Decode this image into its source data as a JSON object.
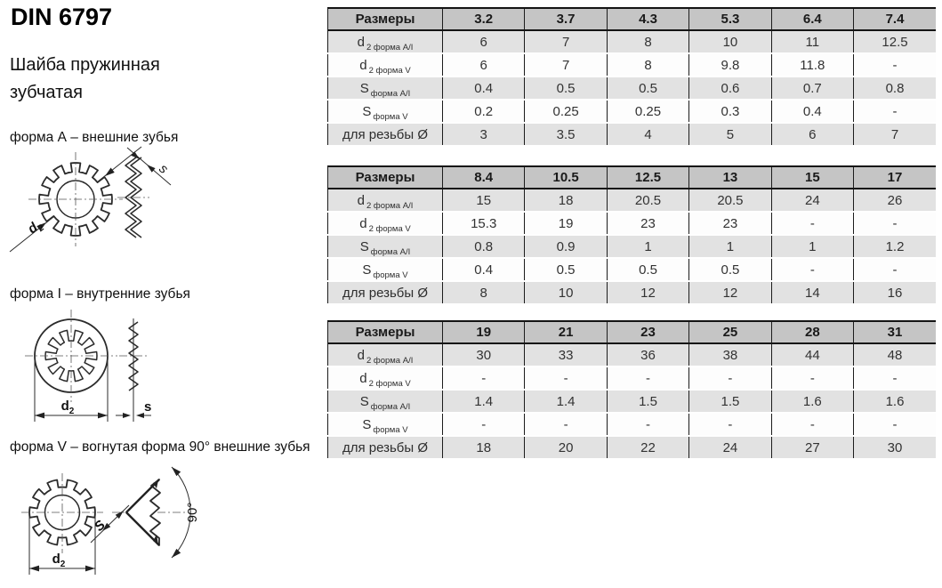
{
  "page": {
    "title": "DIN 6797",
    "subtitle": "Шайба пружинная зубчатая"
  },
  "drawings": {
    "form_a": {
      "caption": "форма А – внешние зубья",
      "dim_d": "d",
      "dim_d_sub": "2",
      "dim_s": "s"
    },
    "form_i": {
      "caption": "форма I – внутренние зубья",
      "dim_d": "d",
      "dim_d_sub": "2",
      "dim_s": "s"
    },
    "form_v": {
      "caption": "форма V – вогнутая форма 90° внешние зубья",
      "dim_d": "d",
      "dim_d_sub": "2",
      "dim_s": "S",
      "angle": "90°"
    }
  },
  "tables": [
    {
      "header": [
        "Размеры",
        "3.2",
        "3.7",
        "4.3",
        "5.3",
        "6.4",
        "7.4"
      ],
      "rows": [
        {
          "main": "d",
          "sub": "2 форма А/I",
          "values": [
            "6",
            "7",
            "8",
            "10",
            "11",
            "12.5"
          ]
        },
        {
          "main": "d",
          "sub": "2 форма V",
          "values": [
            "6",
            "7",
            "8",
            "9.8",
            "11.8",
            "-"
          ]
        },
        {
          "main": "S",
          "sub": "форма А/I",
          "values": [
            "0.4",
            "0.5",
            "0.5",
            "0.6",
            "0.7",
            "0.8"
          ]
        },
        {
          "main": "S",
          "sub": "форма V",
          "values": [
            "0.2",
            "0.25",
            "0.25",
            "0.3",
            "0.4",
            "-"
          ]
        },
        {
          "main": "для резьбы Ø",
          "sub": "",
          "values": [
            "3",
            "3.5",
            "4",
            "5",
            "6",
            "7"
          ]
        }
      ]
    },
    {
      "header": [
        "Размеры",
        "8.4",
        "10.5",
        "12.5",
        "13",
        "15",
        "17"
      ],
      "rows": [
        {
          "main": "d",
          "sub": "2 форма А/I",
          "values": [
            "15",
            "18",
            "20.5",
            "20.5",
            "24",
            "26"
          ]
        },
        {
          "main": "d",
          "sub": "2 форма V",
          "values": [
            "15.3",
            "19",
            "23",
            "23",
            "-",
            "-"
          ]
        },
        {
          "main": "S",
          "sub": "форма А/I",
          "values": [
            "0.8",
            "0.9",
            "1",
            "1",
            "1",
            "1.2"
          ]
        },
        {
          "main": "S",
          "sub": "форма V",
          "values": [
            "0.4",
            "0.5",
            "0.5",
            "0.5",
            "-",
            "-"
          ]
        },
        {
          "main": "для резьбы Ø",
          "sub": "",
          "values": [
            "8",
            "10",
            "12",
            "12",
            "14",
            "16"
          ]
        }
      ]
    },
    {
      "header": [
        "Размеры",
        "19",
        "21",
        "23",
        "25",
        "28",
        "31"
      ],
      "rows": [
        {
          "main": "d",
          "sub": "2 форма А/I",
          "values": [
            "30",
            "33",
            "36",
            "38",
            "44",
            "48"
          ]
        },
        {
          "main": "d",
          "sub": "2 форма V",
          "values": [
            "-",
            "-",
            "-",
            "-",
            "-",
            "-"
          ]
        },
        {
          "main": "S",
          "sub": "форма А/I",
          "values": [
            "1.4",
            "1.4",
            "1.5",
            "1.5",
            "1.6",
            "1.6"
          ]
        },
        {
          "main": "S",
          "sub": "форма V",
          "values": [
            "-",
            "-",
            "-",
            "-",
            "-",
            "-"
          ]
        },
        {
          "main": "для резьбы Ø",
          "sub": "",
          "values": [
            "18",
            "20",
            "22",
            "24",
            "27",
            "30"
          ]
        }
      ]
    }
  ]
}
